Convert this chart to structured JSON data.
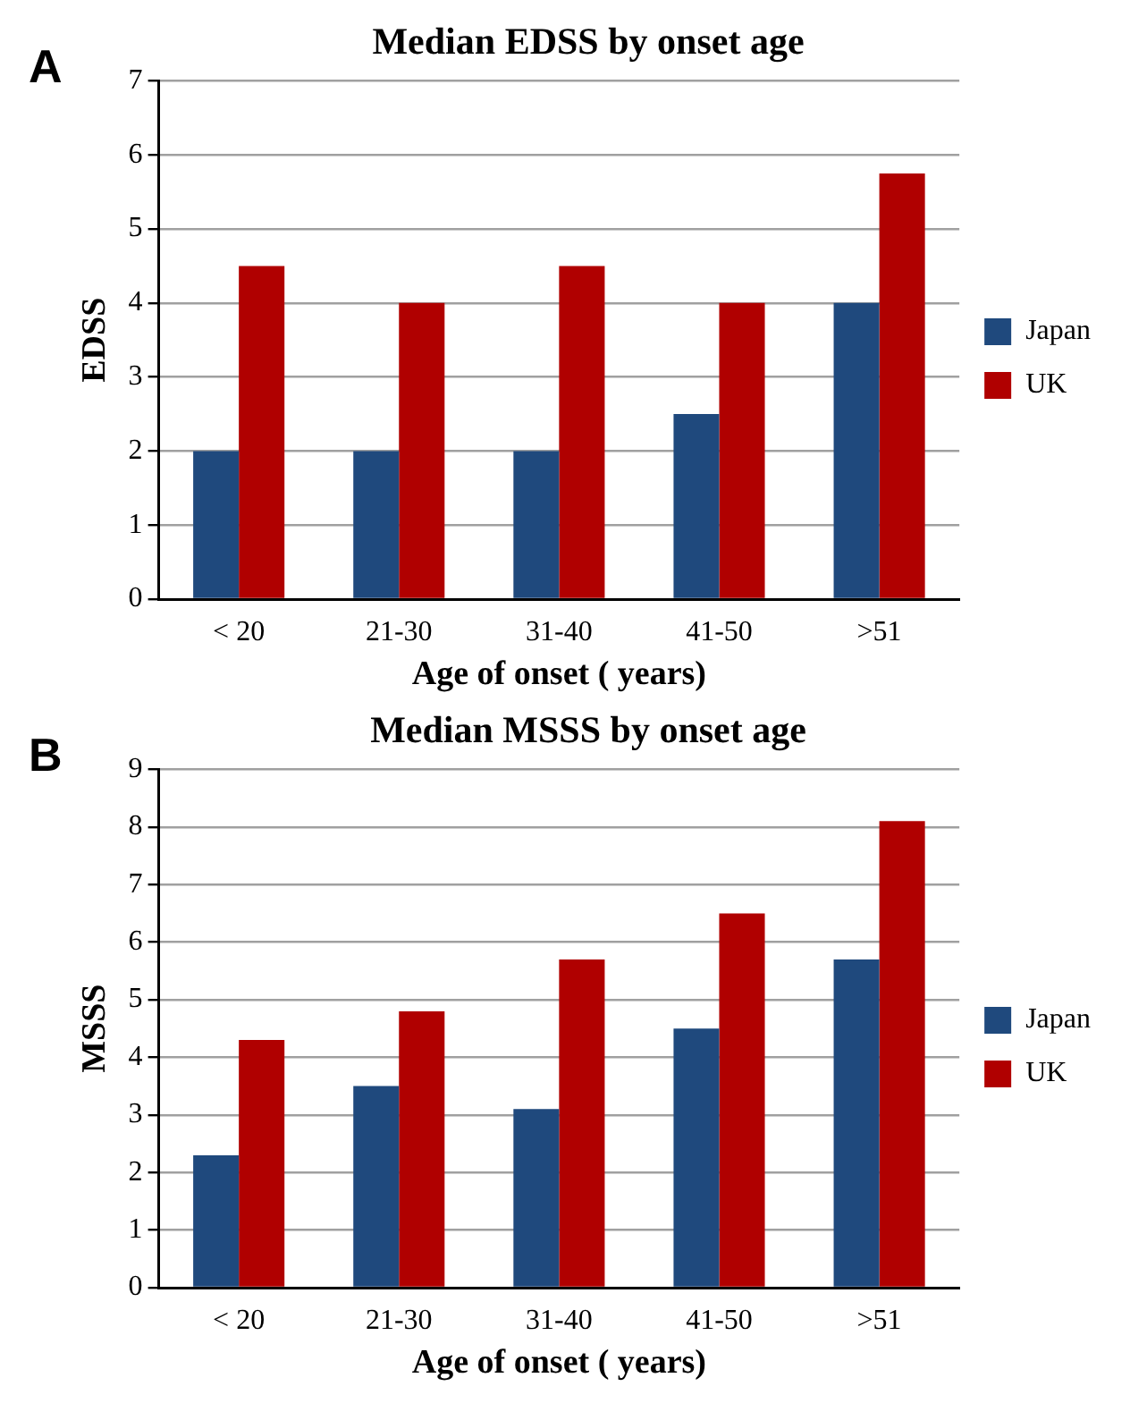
{
  "chart_data": [
    {
      "type": "bar",
      "title": "Median EDSS by onset age",
      "xlabel": "Age of onset ( years)",
      "ylabel": "EDSS",
      "annotations": [
        "A"
      ],
      "categories": [
        "< 20",
        "21-30",
        "31-40",
        "41-50",
        ">51"
      ],
      "series": [
        {
          "name": "Japan",
          "color": "#1f497d",
          "values": [
            2,
            2,
            2,
            2.5,
            4
          ]
        },
        {
          "name": "UK",
          "color": "#b00000",
          "values": [
            4.5,
            4,
            4.5,
            4,
            5.75
          ]
        }
      ],
      "ylim": [
        0,
        7
      ],
      "yticks": [
        0,
        1,
        2,
        3,
        4,
        5,
        6,
        7
      ],
      "grid": "y",
      "legend": "right"
    },
    {
      "type": "bar",
      "title": "Median MSSS by onset age",
      "xlabel": "Age of onset ( years)",
      "ylabel": "MSSS",
      "annotations": [
        "B"
      ],
      "categories": [
        "< 20",
        "21-30",
        "31-40",
        "41-50",
        ">51"
      ],
      "series": [
        {
          "name": "Japan",
          "color": "#1f497d",
          "values": [
            2.3,
            3.5,
            3.1,
            4.5,
            5.7
          ]
        },
        {
          "name": "UK",
          "color": "#b00000",
          "values": [
            4.3,
            4.8,
            5.7,
            6.5,
            8.1
          ]
        }
      ],
      "ylim": [
        0,
        9
      ],
      "yticks": [
        0,
        1,
        2,
        3,
        4,
        5,
        6,
        7,
        8,
        9
      ],
      "grid": "y",
      "legend": "right"
    }
  ]
}
